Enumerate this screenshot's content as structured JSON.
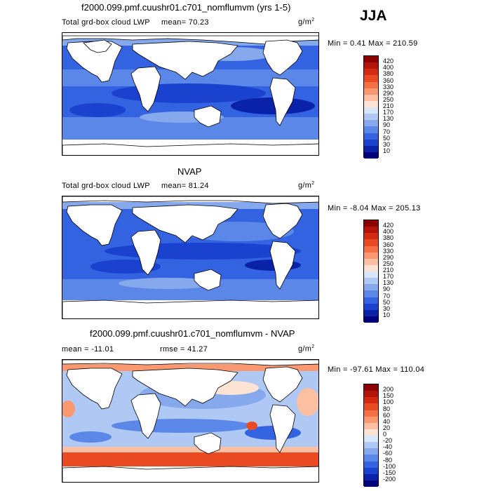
{
  "season": "JJA",
  "panels": [
    {
      "title": "f2000.099.pmf.cuushr01.c701_nomflumvm (yrs 1-5)",
      "field": "Total grd-box cloud LWP",
      "mean": "mean=  70.23",
      "rmse": "",
      "units": "g/m",
      "units_sup": "2",
      "minmax": "Min =   0.41 Max = 210.59",
      "legend": {
        "labels": [
          "420",
          "400",
          "380",
          "360",
          "330",
          "290",
          "250",
          "210",
          "170",
          "130",
          "90",
          "70",
          "50",
          "30",
          "10"
        ],
        "colors": [
          "#8b0000",
          "#b3140a",
          "#d52a12",
          "#ea4a22",
          "#f57144",
          "#fa9872",
          "#fdbfa1",
          "#fde3d3",
          "#d7e6fb",
          "#afc9f4",
          "#86a9ee",
          "#5b87e8",
          "#3463e2",
          "#1a42cf",
          "#0a22a8",
          "#00007a"
        ]
      }
    },
    {
      "title": "NVAP",
      "field": "Total grd-box cloud LWP",
      "mean": "mean=  81.24",
      "rmse": "",
      "units": "g/m",
      "units_sup": "2",
      "minmax": "Min =  -8.04 Max = 205.13",
      "legend": {
        "labels": [
          "420",
          "400",
          "380",
          "360",
          "330",
          "290",
          "250",
          "210",
          "170",
          "130",
          "90",
          "70",
          "50",
          "30",
          "10"
        ],
        "colors": [
          "#8b0000",
          "#b3140a",
          "#d52a12",
          "#ea4a22",
          "#f57144",
          "#fa9872",
          "#fdbfa1",
          "#fde3d3",
          "#d7e6fb",
          "#afc9f4",
          "#86a9ee",
          "#5b87e8",
          "#3463e2",
          "#1a42cf",
          "#0a22a8",
          "#00007a"
        ]
      }
    },
    {
      "title": "f2000.099.pmf.cuushr01.c701_nomflumvm - NVAP",
      "field": "",
      "mean": "mean = -11.01",
      "rmse": "rmse =  41.27",
      "units": "g/m",
      "units_sup": "2",
      "minmax": "Min = -97.61 Max = 110.04",
      "legend": {
        "labels": [
          "200",
          "150",
          "100",
          "80",
          "60",
          "40",
          "20",
          "0",
          "-20",
          "-40",
          "-60",
          "-80",
          "-100",
          "-150",
          "-200"
        ],
        "colors": [
          "#8b0000",
          "#b3140a",
          "#d52a12",
          "#ea4a22",
          "#f57144",
          "#fa9872",
          "#fdbfa1",
          "#fde3d3",
          "#d7e6fb",
          "#afc9f4",
          "#86a9ee",
          "#5b87e8",
          "#3463e2",
          "#1a42cf",
          "#0a22a8",
          "#00007a"
        ]
      }
    }
  ]
}
